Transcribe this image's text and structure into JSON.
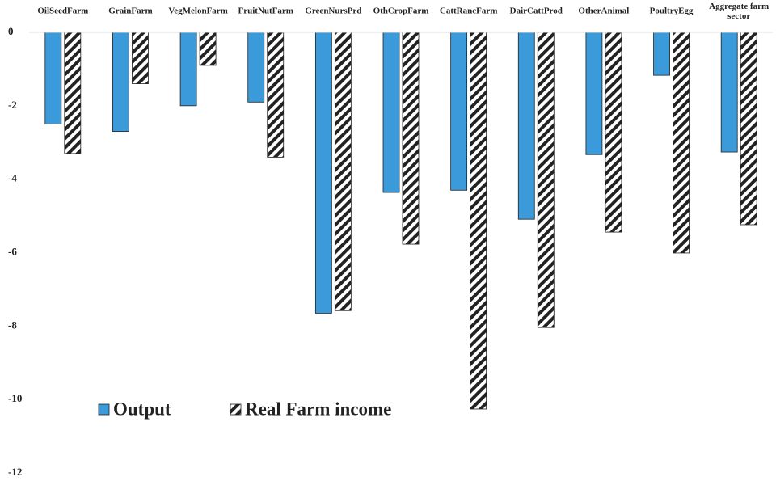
{
  "chart_data": {
    "type": "bar",
    "categories": [
      "OilSeedFarm",
      "GrainFarm",
      "VegMelonFarm",
      "FruitNutFarm",
      "GreenNursPrd",
      "OthCropFarm",
      "CattRancFarm",
      "DairCattProd",
      "OtherAnimal",
      "PoultryEgg",
      "Aggregate farm sector"
    ],
    "series": [
      {
        "name": "Output",
        "color": "#3b9ad9",
        "values": [
          -2.5,
          -2.7,
          -2.0,
          -1.9,
          -7.65,
          -4.36,
          -4.3,
          -5.09,
          -3.33,
          -1.17,
          -3.26
        ]
      },
      {
        "name": "Real Farm income",
        "color": "hatch",
        "values": [
          -3.3,
          -1.4,
          -0.9,
          -3.4,
          -7.58,
          -5.77,
          -10.26,
          -8.04,
          -5.44,
          -6.01,
          -5.24
        ]
      }
    ],
    "ylim": [
      -12,
      0
    ],
    "yticks": [
      0,
      -2,
      -4,
      -6,
      -8,
      -10,
      -12
    ],
    "grid": false
  }
}
